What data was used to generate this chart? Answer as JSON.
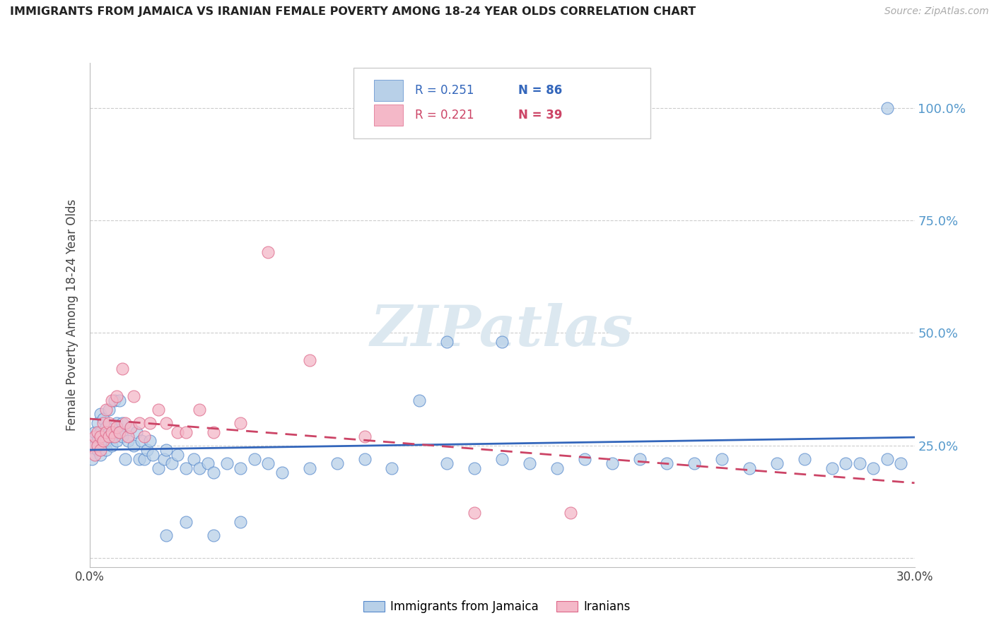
{
  "title": "IMMIGRANTS FROM JAMAICA VS IRANIAN FEMALE POVERTY AMONG 18-24 YEAR OLDS CORRELATION CHART",
  "source": "Source: ZipAtlas.com",
  "ylabel": "Female Poverty Among 18-24 Year Olds",
  "xlim": [
    0.0,
    0.3
  ],
  "ylim": [
    -0.02,
    1.1
  ],
  "yticks": [
    0.0,
    0.25,
    0.5,
    0.75,
    1.0
  ],
  "xticks": [
    0.0,
    0.05,
    0.1,
    0.15,
    0.2,
    0.25,
    0.3
  ],
  "blue_color": "#b8d0e8",
  "blue_edge_color": "#5588cc",
  "blue_line_color": "#3366bb",
  "pink_color": "#f4b8c8",
  "pink_edge_color": "#dd6688",
  "pink_line_color": "#cc4466",
  "right_axis_color": "#5599cc",
  "watermark_color": "#dce8f0",
  "legend_r1": "R = 0.251",
  "legend_n1": "N = 86",
  "legend_r2": "R = 0.221",
  "legend_n2": "N = 39",
  "blue_label": "Immigrants from Jamaica",
  "pink_label": "Iranians",
  "blue_scatter_x": [
    0.001,
    0.001,
    0.002,
    0.002,
    0.003,
    0.003,
    0.003,
    0.004,
    0.004,
    0.004,
    0.005,
    0.005,
    0.005,
    0.006,
    0.006,
    0.006,
    0.007,
    0.007,
    0.008,
    0.008,
    0.009,
    0.009,
    0.01,
    0.01,
    0.011,
    0.011,
    0.012,
    0.012,
    0.013,
    0.014,
    0.015,
    0.016,
    0.017,
    0.018,
    0.019,
    0.02,
    0.021,
    0.022,
    0.023,
    0.025,
    0.027,
    0.028,
    0.03,
    0.032,
    0.035,
    0.038,
    0.04,
    0.043,
    0.045,
    0.05,
    0.055,
    0.06,
    0.065,
    0.07,
    0.08,
    0.09,
    0.1,
    0.11,
    0.12,
    0.13,
    0.14,
    0.15,
    0.16,
    0.17,
    0.18,
    0.19,
    0.2,
    0.21,
    0.22,
    0.23,
    0.24,
    0.25,
    0.26,
    0.27,
    0.275,
    0.28,
    0.285,
    0.29,
    0.295,
    0.13,
    0.028,
    0.035,
    0.045,
    0.055,
    0.15,
    0.29
  ],
  "blue_scatter_y": [
    0.22,
    0.27,
    0.25,
    0.28,
    0.24,
    0.26,
    0.3,
    0.23,
    0.28,
    0.32,
    0.25,
    0.27,
    0.31,
    0.24,
    0.29,
    0.26,
    0.28,
    0.33,
    0.25,
    0.27,
    0.28,
    0.35,
    0.26,
    0.3,
    0.28,
    0.35,
    0.27,
    0.3,
    0.22,
    0.26,
    0.29,
    0.25,
    0.28,
    0.22,
    0.26,
    0.22,
    0.24,
    0.26,
    0.23,
    0.2,
    0.22,
    0.24,
    0.21,
    0.23,
    0.2,
    0.22,
    0.2,
    0.21,
    0.19,
    0.21,
    0.2,
    0.22,
    0.21,
    0.19,
    0.2,
    0.21,
    0.22,
    0.2,
    0.35,
    0.21,
    0.2,
    0.22,
    0.21,
    0.2,
    0.22,
    0.21,
    0.22,
    0.21,
    0.21,
    0.22,
    0.2,
    0.21,
    0.22,
    0.2,
    0.21,
    0.21,
    0.2,
    0.22,
    0.21,
    0.48,
    0.05,
    0.08,
    0.05,
    0.08,
    0.48,
    1.0
  ],
  "pink_scatter_x": [
    0.001,
    0.002,
    0.002,
    0.003,
    0.003,
    0.004,
    0.004,
    0.005,
    0.005,
    0.006,
    0.006,
    0.007,
    0.007,
    0.008,
    0.008,
    0.009,
    0.01,
    0.01,
    0.011,
    0.012,
    0.013,
    0.014,
    0.015,
    0.016,
    0.018,
    0.02,
    0.022,
    0.025,
    0.028,
    0.032,
    0.035,
    0.04,
    0.045,
    0.055,
    0.065,
    0.08,
    0.1,
    0.14,
    0.175
  ],
  "pink_scatter_y": [
    0.25,
    0.23,
    0.27,
    0.25,
    0.28,
    0.24,
    0.27,
    0.26,
    0.3,
    0.28,
    0.33,
    0.27,
    0.3,
    0.28,
    0.35,
    0.27,
    0.29,
    0.36,
    0.28,
    0.42,
    0.3,
    0.27,
    0.29,
    0.36,
    0.3,
    0.27,
    0.3,
    0.33,
    0.3,
    0.28,
    0.28,
    0.33,
    0.28,
    0.3,
    0.68,
    0.44,
    0.27,
    0.1,
    0.1
  ]
}
